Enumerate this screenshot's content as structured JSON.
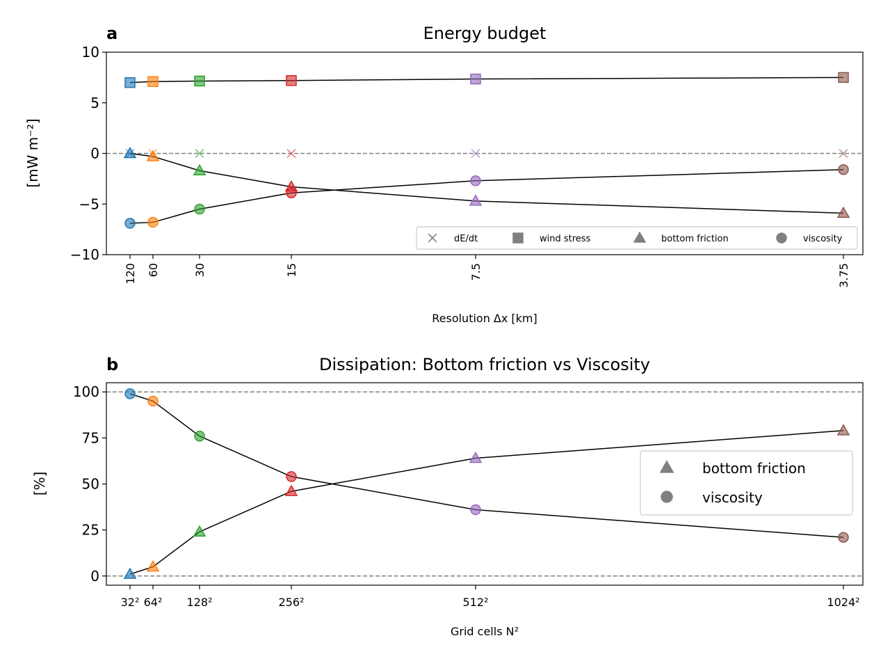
{
  "colors": {
    "series": [
      "#1f77b4",
      "#ff7f0e",
      "#2ca02c",
      "#d62728",
      "#9467bd",
      "#8c564b"
    ],
    "line": "#000000",
    "zero": "#808080",
    "legend_marker": "#808080"
  },
  "chart_data": [
    {
      "panel_label": "a",
      "type": "scatter",
      "title": "Energy budget",
      "xlabel": "Resolution Δx [km]",
      "ylabel": "[mW m⁻²]",
      "x_ticks": [
        "120",
        "60",
        "30",
        "15",
        "7.5",
        "3.75"
      ],
      "x_tick_rotation": "vertical",
      "ylim": [
        -10,
        10
      ],
      "y_ticks": [
        "−10",
        "−5",
        "0",
        "5",
        "10"
      ],
      "y_tick_values": [
        -10,
        -5,
        0,
        5,
        10
      ],
      "grid": false,
      "reference_line": 0,
      "legend_position": "lower-right",
      "series": [
        {
          "name": "dE/dt",
          "marker": "x",
          "connect": false,
          "values": [
            0.0,
            0.0,
            0.0,
            0.0,
            0.0,
            0.0
          ]
        },
        {
          "name": "wind stress",
          "marker": "square",
          "connect": true,
          "values": [
            7.0,
            7.1,
            7.15,
            7.2,
            7.35,
            7.5
          ]
        },
        {
          "name": "bottom friction",
          "marker": "triangle",
          "connect": true,
          "values": [
            0.0,
            -0.3,
            -1.7,
            -3.3,
            -4.7,
            -5.9
          ]
        },
        {
          "name": "viscosity",
          "marker": "circle",
          "connect": true,
          "values": [
            -6.9,
            -6.8,
            -5.5,
            -3.9,
            -2.7,
            -1.6
          ]
        }
      ]
    },
    {
      "panel_label": "b",
      "type": "line",
      "title": "Dissipation: Bottom friction vs Viscosity",
      "xlabel": "Grid cells N²",
      "ylabel": "[%]",
      "x_ticks": [
        "32²",
        "64²",
        "128²",
        "256²",
        "512²",
        "1024²"
      ],
      "ylim": [
        -5,
        105
      ],
      "y_ticks": [
        "0",
        "25",
        "50",
        "75",
        "100"
      ],
      "y_tick_values": [
        0,
        25,
        50,
        75,
        100
      ],
      "grid": false,
      "reference_lines": [
        0,
        100
      ],
      "legend_position": "center-right",
      "series": [
        {
          "name": "bottom friction",
          "marker": "triangle",
          "connect": true,
          "values": [
            1,
            5,
            24,
            46,
            64,
            79
          ]
        },
        {
          "name": "viscosity",
          "marker": "circle",
          "connect": true,
          "values": [
            99,
            95,
            76,
            54,
            36,
            21
          ]
        }
      ]
    }
  ]
}
